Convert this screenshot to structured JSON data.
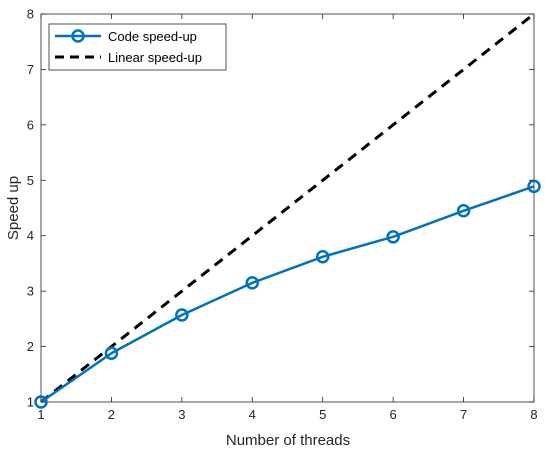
{
  "chart_data": {
    "type": "line",
    "xlabel": "Number of threads",
    "ylabel": "Speed up",
    "xlim": [
      1,
      8
    ],
    "ylim": [
      1,
      8
    ],
    "x_ticks": [
      1,
      2,
      3,
      4,
      5,
      6,
      7,
      8
    ],
    "y_ticks": [
      1,
      2,
      3,
      4,
      5,
      6,
      7,
      8
    ],
    "grid": false,
    "legend_position": "top-left",
    "x": [
      1,
      2,
      3,
      4,
      5,
      6,
      7,
      8
    ],
    "series": [
      {
        "name": "Code speed-up",
        "values": [
          1.0,
          1.88,
          2.57,
          3.15,
          3.62,
          3.98,
          4.45,
          4.89
        ],
        "color": "#0072BD",
        "line_style": "solid",
        "marker": "circle"
      },
      {
        "name": "Linear speed-up",
        "values": [
          1,
          2,
          3,
          4,
          5,
          6,
          7,
          8
        ],
        "color": "#000000",
        "line_style": "dashed",
        "marker": "none"
      }
    ]
  }
}
